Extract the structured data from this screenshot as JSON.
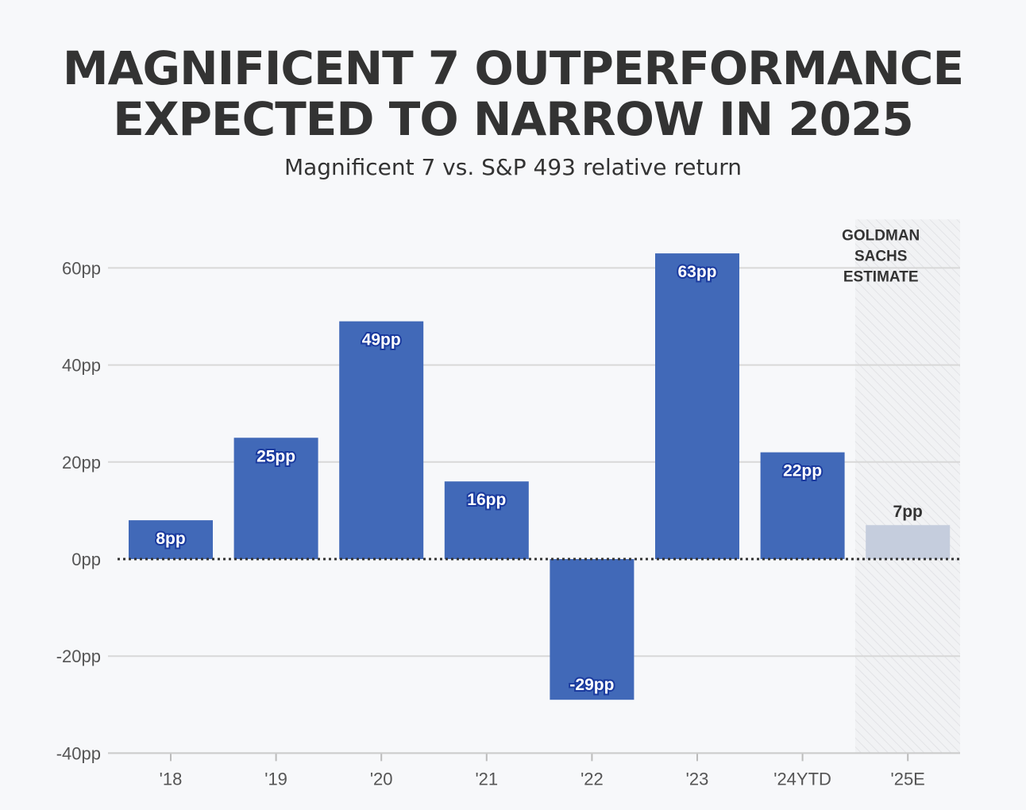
{
  "title_lines": [
    "MAGNIFICENT 7 OUTPERFORMANCE",
    "EXPECTED TO NARROW IN 2025"
  ],
  "subtitle": "Magnificent 7 vs. S&P 493 relative return",
  "colors": {
    "bar": "#4169b8",
    "estimate_bar": "#c5cddd",
    "grid": "#d8d8d8",
    "zero_line": "#333333",
    "background": "#f7f8fa"
  },
  "chart_data": {
    "type": "bar",
    "title": "MAGNIFICENT 7 OUTPERFORMANCE EXPECTED TO NARROW IN 2025",
    "subtitle": "Magnificent 7 vs. S&P 493 relative return",
    "xlabel": "",
    "ylabel": "",
    "categories": [
      "'18",
      "'19",
      "'20",
      "'21",
      "'22",
      "'23",
      "'24YTD",
      "'25E"
    ],
    "values": [
      8,
      25,
      49,
      16,
      -29,
      63,
      22,
      7
    ],
    "data_labels": [
      "8pp",
      "25pp",
      "49pp",
      "16pp",
      "-29pp",
      "63pp",
      "22pp",
      "7pp"
    ],
    "estimate_flags": [
      false,
      false,
      false,
      false,
      false,
      false,
      false,
      true
    ],
    "y_ticks": [
      -40,
      -20,
      0,
      20,
      40,
      60
    ],
    "y_tick_labels": [
      "-40pp",
      "-20pp",
      "0pp",
      "20pp",
      "40pp",
      "60pp"
    ],
    "ylim": [
      -40,
      70
    ],
    "grid": true,
    "legend": "none",
    "estimate_band_label": [
      "GOLDMAN",
      "SACHS",
      "ESTIMATE"
    ]
  }
}
